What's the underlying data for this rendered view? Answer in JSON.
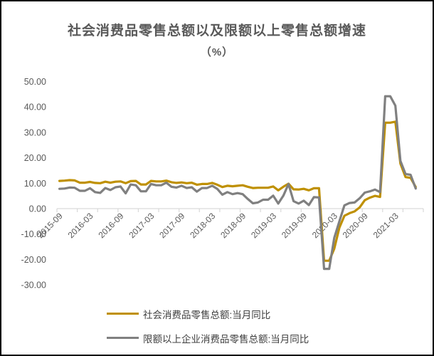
{
  "title": "社会消费品零售总额以及限额以上零售总额增速",
  "subtitle": "（%）",
  "colors": {
    "title_text": "#595959",
    "axis_and_ticks": "#D9D9D9",
    "axis_labels": "#595959",
    "legend_text": "#404040",
    "frame_border": "#000000",
    "background": "#FFFFFF"
  },
  "chart_data": {
    "type": "line",
    "title": "社会消费品零售总额以及限额以上零售总额增速",
    "subtitle": "（%）",
    "ylabel": "",
    "xlabel": "",
    "ylim": [
      -30,
      50
    ],
    "y_ticks": [
      50,
      40,
      30,
      20,
      10,
      0,
      -10,
      -20,
      -30
    ],
    "y_tick_format": "two-decimals",
    "grid": "zero-line-only",
    "legend_position": "bottom-left",
    "x": [
      "2015-09",
      "2015-10",
      "2015-11",
      "2015-12",
      "2016-01",
      "2016-02",
      "2016-03",
      "2016-04",
      "2016-05",
      "2016-06",
      "2016-07",
      "2016-08",
      "2016-09",
      "2016-10",
      "2016-11",
      "2016-12",
      "2017-01",
      "2017-02",
      "2017-03",
      "2017-04",
      "2017-05",
      "2017-06",
      "2017-07",
      "2017-08",
      "2017-09",
      "2017-10",
      "2017-11",
      "2017-12",
      "2018-01",
      "2018-02",
      "2018-03",
      "2018-04",
      "2018-05",
      "2018-06",
      "2018-07",
      "2018-08",
      "2018-09",
      "2018-10",
      "2018-11",
      "2018-12",
      "2019-01",
      "2019-02",
      "2019-03",
      "2019-04",
      "2019-05",
      "2019-06",
      "2019-07",
      "2019-08",
      "2019-09",
      "2019-10",
      "2019-11",
      "2019-12",
      "2020-01",
      "2020-02",
      "2020-03",
      "2020-04",
      "2020-05",
      "2020-06",
      "2020-07",
      "2020-08",
      "2020-09",
      "2020-10",
      "2020-11",
      "2020-12",
      "2021-01",
      "2021-02",
      "2021-03",
      "2021-04",
      "2021-05",
      "2021-06",
      "2021-07"
    ],
    "x_tick_labels": [
      "2015-09",
      "2016-03",
      "2016-09",
      "2017-03",
      "2017-09",
      "2018-03",
      "2018-09",
      "2019-03",
      "2019-09",
      "2020-03",
      "2020-09",
      "2021-03"
    ],
    "series": [
      {
        "name": "社会消费品零售总额:当月同比",
        "color": "#BF9000",
        "values": [
          10.9,
          11.0,
          11.2,
          11.1,
          10.2,
          10.2,
          10.5,
          10.1,
          10.0,
          10.6,
          10.2,
          10.6,
          10.7,
          10.0,
          10.8,
          10.9,
          9.5,
          9.5,
          10.9,
          10.7,
          10.7,
          11.0,
          10.4,
          10.1,
          10.3,
          10.0,
          10.2,
          9.4,
          9.7,
          9.7,
          10.1,
          9.4,
          8.5,
          9.0,
          8.8,
          9.0,
          9.2,
          8.6,
          8.1,
          8.2,
          8.2,
          8.2,
          8.7,
          7.2,
          8.6,
          9.8,
          7.6,
          7.5,
          7.8,
          7.2,
          8.0,
          8.0,
          -20.5,
          -20.5,
          -15.8,
          -7.5,
          -2.8,
          -1.8,
          -1.1,
          0.5,
          3.3,
          4.3,
          5.0,
          4.6,
          33.8,
          33.8,
          34.2,
          17.7,
          12.4,
          12.1,
          8.5
        ]
      },
      {
        "name": "限额以上企业消费品零售总额:当月同比",
        "color": "#808080",
        "values": [
          7.8,
          7.9,
          8.3,
          8.2,
          7.0,
          7.0,
          8.0,
          6.5,
          6.2,
          8.1,
          7.3,
          8.4,
          8.7,
          6.0,
          9.5,
          9.2,
          6.8,
          6.8,
          9.7,
          9.2,
          9.2,
          10.2,
          8.6,
          8.3,
          9.0,
          8.1,
          8.4,
          6.7,
          8.1,
          8.1,
          9.0,
          7.8,
          5.5,
          6.5,
          5.7,
          6.1,
          5.7,
          3.8,
          2.1,
          2.4,
          3.5,
          3.5,
          5.1,
          2.0,
          5.1,
          9.7,
          2.9,
          2.0,
          3.1,
          1.4,
          4.5,
          4.4,
          -23.7,
          -23.7,
          -11.5,
          -5.0,
          1.3,
          2.2,
          2.4,
          4.1,
          6.3,
          6.8,
          7.5,
          6.5,
          44.2,
          44.2,
          40.5,
          18.8,
          13.6,
          13.3,
          7.9
        ]
      }
    ]
  }
}
